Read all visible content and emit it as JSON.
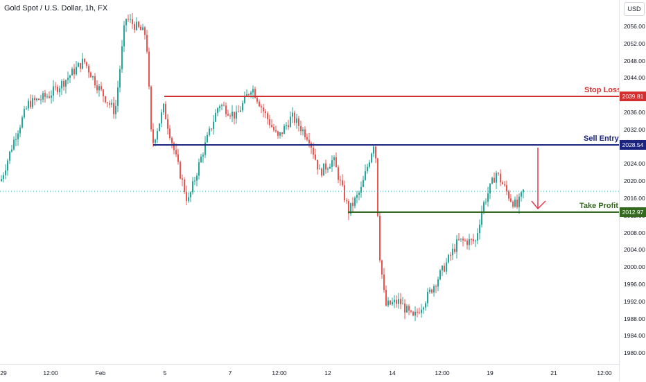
{
  "symbol": {
    "title": "Gold Spot / U.S. Dollar, 1h, FX"
  },
  "currency": {
    "label": "USD"
  },
  "colors": {
    "up": "#26a69a",
    "down": "#ef5350",
    "stop_loss": "#d32f2f",
    "sell_entry": "#1a237e",
    "take_profit": "#33691e",
    "arrow": "#e53950"
  },
  "levels": {
    "stop_loss": {
      "label": "Stop Loss",
      "price": "2039.81"
    },
    "sell_entry": {
      "label": "Sell Entry",
      "price": "2028.54"
    },
    "take_profit": {
      "label": "Take Profit",
      "price": "2012.97"
    }
  },
  "price_axis": {
    "ticks": [
      "2056.00",
      "2052.00",
      "2048.00",
      "2044.00",
      "2040.00",
      "2036.00",
      "2032.00",
      "2028.00",
      "2024.00",
      "2020.00",
      "2016.00",
      "2012.00",
      "2008.00",
      "2004.00",
      "2000.00",
      "1996.00",
      "1992.00",
      "1988.00",
      "1984.00",
      "1980.00"
    ]
  },
  "time_axis": {
    "ticks": [
      "29",
      "12:00",
      "Feb",
      "5",
      "7",
      "12:00",
      "12",
      "14",
      "12:00",
      "19",
      "21",
      "12:00"
    ]
  },
  "chart_data": {
    "type": "line",
    "title": "Gold Spot / U.S. Dollar, 1h, FX",
    "ylim": [
      1980,
      2058
    ],
    "x": [
      "29",
      "12:00",
      "Feb",
      "5",
      "7",
      "12:00",
      "12",
      "14",
      "12:00",
      "19",
      "21",
      "12:00"
    ],
    "series": [
      {
        "name": "Gold Spot / U.S. Dollar",
        "values": [
          2023,
          2038,
          2054,
          2032,
          2035,
          2033,
          2026,
          1992,
          1991,
          2018,
          2021,
          2018
        ]
      }
    ],
    "annotations": [
      {
        "label": "Stop Loss",
        "value": 2039.81
      },
      {
        "label": "Sell Entry",
        "value": 2028.54
      },
      {
        "label": "Take Profit",
        "value": 2012.97
      }
    ]
  }
}
